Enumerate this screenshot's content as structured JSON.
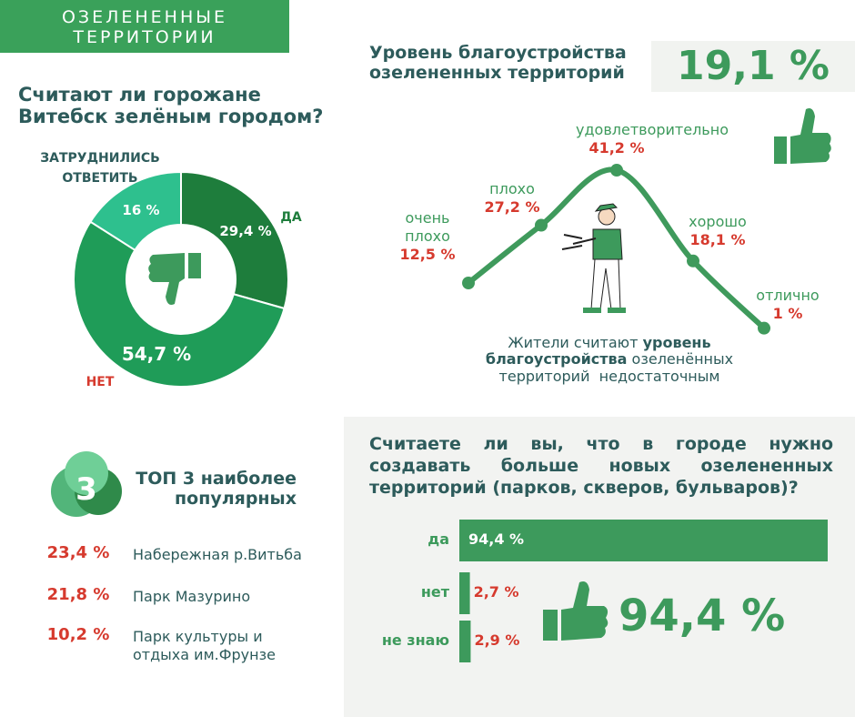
{
  "header": {
    "title_lines": [
      "ОЗЕЛЕНЕННЫЕ",
      "ТЕРРИТОРИИ"
    ]
  },
  "chart_data": [
    {
      "type": "pie",
      "title_lines": [
        "Считают ли горожане",
        "Витебск зелёным городом?"
      ],
      "categories": [
        "ДА",
        "НЕТ",
        "ЗАТРУДНИЛИСЬ ОТВЕТИТЬ"
      ],
      "values": [
        29.4,
        54.7,
        16
      ],
      "value_labels": [
        "29,4 %",
        "54,7 %",
        "16 %"
      ],
      "colors": [
        "#1e7d3c",
        "#1f9c58",
        "#2ec08e"
      ]
    },
    {
      "type": "line",
      "title_lines": [
        "Уровень благоустройства",
        "озелененных территорий"
      ],
      "highlight": "19,1 %",
      "categories": [
        "очень плохо",
        "плохо",
        "удовлетворительно",
        "хорошо",
        "отлично"
      ],
      "values": [
        12.5,
        27.2,
        41.2,
        18.1,
        1
      ],
      "value_labels": [
        "12,5 %",
        "27,2 %",
        "41,2 %",
        "18,1 %",
        "1 %"
      ],
      "color": "#3f9a5c",
      "note_parts": [
        "Жители считают",
        "уровень благоустройства",
        "озеленённых территорий  недостаточным"
      ]
    },
    {
      "type": "bar",
      "title": "Считаете ли вы, что в городе нужно создавать больше новых озелененных территорий (парков, скверов, бульваров)?",
      "categories": [
        "да",
        "нет",
        "не знаю"
      ],
      "values": [
        94.4,
        2.7,
        2.9
      ],
      "value_labels": [
        "94,4 %",
        "2,7 %",
        "2,9 %"
      ],
      "color": "#3d9a5c",
      "highlight": "94,4 %"
    }
  ],
  "top3": {
    "badge": "3",
    "title_lines": [
      "ТОП 3 наиболее",
      "популярных"
    ],
    "items": [
      {
        "share": "23,4 %",
        "name": "Набережная р.Витьба"
      },
      {
        "share": "21,8 %",
        "name": "Парк Мазурино"
      },
      {
        "share": "10,2 %",
        "name": "Парк культуры и отдыха им.Фрунзе"
      }
    ]
  }
}
